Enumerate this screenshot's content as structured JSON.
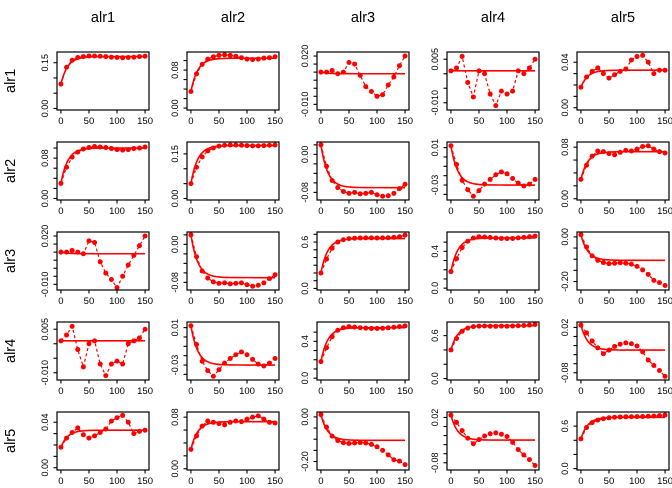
{
  "figure": {
    "background": "#ffffff",
    "accent_color": "#ff0000",
    "axis_color": "#000000",
    "col_headers": [
      "alr1",
      "alr2",
      "alr3",
      "alr4",
      "alr5"
    ],
    "row_headers": [
      "alr1",
      "alr2",
      "alr3",
      "alr4",
      "alr5"
    ]
  },
  "chart_data": {
    "type": "line",
    "title": "",
    "xlabel": "",
    "ylabel": "",
    "grid": false,
    "legend": "none",
    "layout": "5x5 matrix, rows alr1-alr5, columns alr1-alr5, each panel: red points with dashed connector, solid red asymptote/reference line, x axis 0-150",
    "x": [
      0,
      10,
      20,
      30,
      40,
      50,
      60,
      70,
      80,
      90,
      100,
      110,
      120,
      130,
      140,
      150
    ],
    "x_range": [
      -7,
      157
    ],
    "x_ticks": [
      {
        "v": 0,
        "label": "0"
      },
      {
        "v": 50,
        "label": "50"
      },
      {
        "v": 100,
        "label": "100"
      },
      {
        "v": 150,
        "label": "150"
      }
    ],
    "panels": [
      {
        "row": "alr1",
        "col": "alr1",
        "ylim": [
          -0.005,
          0.185
        ],
        "yticks": [
          0,
          0.05,
          0.1,
          0.15
        ],
        "ylabels": [
          [
            0,
            "0.00"
          ],
          [
            0.15,
            "0.15"
          ]
        ],
        "ref": 0.17,
        "y": [
          0.08,
          0.135,
          0.158,
          0.167,
          0.17,
          0.172,
          0.172,
          0.171,
          0.17,
          0.168,
          0.167,
          0.166,
          0.167,
          0.168,
          0.17,
          0.171
        ]
      },
      {
        "row": "alr1",
        "col": "alr2",
        "ylim": [
          -0.004,
          0.118
        ],
        "yticks": [
          0,
          0.02,
          0.04,
          0.06,
          0.08,
          0.1
        ],
        "ylabels": [
          [
            0,
            "0.00"
          ],
          [
            0.08,
            "0.08"
          ]
        ],
        "ref": 0.105,
        "y": [
          0.035,
          0.072,
          0.092,
          0.103,
          0.108,
          0.111,
          0.112,
          0.111,
          0.109,
          0.106,
          0.103,
          0.102,
          0.103,
          0.105,
          0.106,
          0.108
        ]
      },
      {
        "row": "alr1",
        "col": "alr3",
        "ylim": [
          -0.0135,
          0.0225
        ],
        "yticks": [
          -0.01,
          -0.005,
          0,
          0.005,
          0.01,
          0.015,
          0.02
        ],
        "ylabels": [
          [
            -0.01,
            "-0.010"
          ],
          [
            0.02,
            "0.020"
          ]
        ],
        "ref": 0.009,
        "y": [
          0.01,
          0.01,
          0.011,
          0.009,
          0.01,
          0.016,
          0.015,
          0.008,
          0.001,
          -0.002,
          -0.005,
          -0.004,
          0.002,
          0.007,
          0.014,
          0.02
        ]
      },
      {
        "row": "alr1",
        "col": "alr4",
        "ylim": [
          -0.0125,
          0.0075
        ],
        "yticks": [
          -0.01,
          -0.005,
          0,
          0.005
        ],
        "ylabels": [
          [
            -0.01,
            "-0.010"
          ],
          [
            0.005,
            "0.005"
          ]
        ],
        "ref": 0.001,
        "y": [
          0.001,
          0.002,
          0.006,
          -0.003,
          -0.008,
          0.001,
          0.0,
          -0.007,
          -0.011,
          -0.006,
          -0.007,
          -0.006,
          0.001,
          0.0,
          0.002,
          0.005
        ]
      },
      {
        "row": "alr1",
        "col": "alr5",
        "ylim": [
          -0.002,
          0.049
        ],
        "yticks": [
          0,
          0.01,
          0.02,
          0.03,
          0.04
        ],
        "ylabels": [
          [
            0,
            "0.00"
          ],
          [
            0.04,
            "0.04"
          ]
        ],
        "ref": 0.033,
        "y": [
          0.018,
          0.027,
          0.032,
          0.035,
          0.03,
          0.026,
          0.029,
          0.032,
          0.034,
          0.042,
          0.045,
          0.046,
          0.04,
          0.03,
          0.033,
          0.033
        ]
      },
      {
        "row": "alr2",
        "col": "alr1",
        "ylim": [
          -0.003,
          0.112
        ],
        "yticks": [
          0,
          0.02,
          0.04,
          0.06,
          0.08,
          0.1
        ],
        "ylabels": [
          [
            0,
            "0.00"
          ],
          [
            0.08,
            "0.08"
          ]
        ],
        "ref": 0.1,
        "y": [
          0.03,
          0.062,
          0.082,
          0.092,
          0.098,
          0.101,
          0.103,
          0.102,
          0.101,
          0.099,
          0.097,
          0.096,
          0.097,
          0.099,
          0.1,
          0.102
        ]
      },
      {
        "row": "alr2",
        "col": "alr2",
        "ylim": [
          -0.005,
          0.19
        ],
        "yticks": [
          0,
          0.05,
          0.1,
          0.15
        ],
        "ylabels": [
          [
            0,
            "0.00"
          ],
          [
            0.15,
            "0.15"
          ]
        ],
        "ref": 0.178,
        "y": [
          0.05,
          0.105,
          0.14,
          0.16,
          0.17,
          0.176,
          0.179,
          0.18,
          0.18,
          0.179,
          0.178,
          0.177,
          0.177,
          0.178,
          0.179,
          0.18
        ]
      },
      {
        "row": "alr2",
        "col": "alr3",
        "ylim": [
          -0.096,
          0.026
        ],
        "yticks": [
          -0.08,
          -0.06,
          -0.04,
          -0.02,
          0,
          0.02
        ],
        "ylabels": [
          [
            -0.08,
            "-0.08"
          ],
          [
            0,
            "0.00"
          ]
        ],
        "ref": -0.07,
        "y": [
          0.02,
          -0.025,
          -0.055,
          -0.07,
          -0.078,
          -0.082,
          -0.08,
          -0.083,
          -0.082,
          -0.08,
          -0.085,
          -0.088,
          -0.087,
          -0.082,
          -0.072,
          -0.063
        ]
      },
      {
        "row": "alr2",
        "col": "alr4",
        "ylim": [
          -0.046,
          0.016
        ],
        "yticks": [
          -0.04,
          -0.03,
          -0.02,
          -0.01,
          0,
          0.01
        ],
        "ylabels": [
          [
            -0.03,
            "-0.03"
          ],
          [
            0.01,
            "0.01"
          ]
        ],
        "ref": -0.03,
        "y": [
          0.012,
          -0.008,
          -0.025,
          -0.035,
          -0.042,
          -0.036,
          -0.029,
          -0.024,
          -0.019,
          -0.016,
          -0.018,
          -0.023,
          -0.028,
          -0.031,
          -0.029,
          -0.024
        ]
      },
      {
        "row": "alr2",
        "col": "alr5",
        "ylim": [
          -0.002,
          0.088
        ],
        "yticks": [
          0,
          0.02,
          0.04,
          0.06,
          0.08
        ],
        "ylabels": [
          [
            0,
            "0.00"
          ],
          [
            0.08,
            "0.08"
          ]
        ],
        "ref": 0.073,
        "y": [
          0.03,
          0.052,
          0.066,
          0.074,
          0.073,
          0.07,
          0.068,
          0.072,
          0.075,
          0.074,
          0.077,
          0.081,
          0.082,
          0.077,
          0.073,
          0.071
        ]
      },
      {
        "row": "alr3",
        "col": "alr1",
        "ylim": [
          -0.0135,
          0.0225
        ],
        "yticks": [
          -0.01,
          -0.005,
          0,
          0.005,
          0.01,
          0.015,
          0.02
        ],
        "ylabels": [
          [
            -0.01,
            "-0.010"
          ],
          [
            0.02,
            "0.020"
          ]
        ],
        "ref": 0.009,
        "y": [
          0.01,
          0.01,
          0.011,
          0.01,
          0.009,
          0.017,
          0.016,
          0.004,
          -0.003,
          -0.007,
          -0.012,
          -0.005,
          0.002,
          0.008,
          0.014,
          0.02
        ]
      },
      {
        "row": "alr3",
        "col": "alr2",
        "ylim": [
          -0.096,
          0.026
        ],
        "yticks": [
          -0.08,
          -0.06,
          -0.04,
          -0.02,
          0,
          0.02
        ],
        "ylabels": [
          [
            -0.08,
            "-0.08"
          ],
          [
            0,
            "0.00"
          ]
        ],
        "ref": -0.07,
        "y": [
          0.02,
          -0.026,
          -0.056,
          -0.071,
          -0.079,
          -0.082,
          -0.081,
          -0.083,
          -0.082,
          -0.081,
          -0.085,
          -0.088,
          -0.086,
          -0.081,
          -0.072,
          -0.064
        ]
      },
      {
        "row": "alr3",
        "col": "alr3",
        "ylim": [
          -0.02,
          0.73
        ],
        "yticks": [
          0,
          0.1,
          0.2,
          0.3,
          0.4,
          0.5,
          0.6,
          0.7
        ],
        "ylabels": [
          [
            0,
            "0.0"
          ],
          [
            0.6,
            "0.6"
          ]
        ],
        "ref": 0.645,
        "y": [
          0.2,
          0.38,
          0.52,
          0.6,
          0.63,
          0.645,
          0.65,
          0.653,
          0.654,
          0.654,
          0.653,
          0.654,
          0.656,
          0.66,
          0.668,
          0.69
        ]
      },
      {
        "row": "alr3",
        "col": "alr4",
        "ylim": [
          -0.02,
          0.61
        ],
        "yticks": [
          0,
          0.1,
          0.2,
          0.3,
          0.4,
          0.5
        ],
        "ylabels": [
          [
            0,
            "0.0"
          ],
          [
            0.4,
            "0.4"
          ]
        ],
        "ref": 0.545,
        "y": [
          0.18,
          0.32,
          0.44,
          0.51,
          0.545,
          0.558,
          0.556,
          0.55,
          0.545,
          0.54,
          0.538,
          0.54,
          0.546,
          0.552,
          0.558,
          0.565
        ]
      },
      {
        "row": "alr3",
        "col": "alr5",
        "ylim": [
          -0.238,
          0.022
        ],
        "yticks": [
          -0.2,
          -0.15,
          -0.1,
          -0.05,
          0
        ],
        "ylabels": [
          [
            -0.2,
            "-0.20"
          ],
          [
            0,
            "0.00"
          ]
        ],
        "ref": -0.105,
        "y": [
          0.01,
          -0.045,
          -0.085,
          -0.105,
          -0.115,
          -0.12,
          -0.118,
          -0.116,
          -0.118,
          -0.122,
          -0.132,
          -0.148,
          -0.168,
          -0.195,
          -0.205,
          -0.218
        ]
      },
      {
        "row": "alr4",
        "col": "alr1",
        "ylim": [
          -0.0125,
          0.0075
        ],
        "yticks": [
          -0.01,
          -0.005,
          0,
          0.005
        ],
        "ylabels": [
          [
            -0.01,
            "-0.010"
          ],
          [
            0.005,
            "0.005"
          ]
        ],
        "ref": 0.001,
        "y": [
          0.001,
          0.003,
          0.006,
          -0.002,
          -0.008,
          0.0,
          0.001,
          -0.007,
          -0.011,
          -0.007,
          -0.006,
          -0.007,
          0.0,
          0.001,
          0.002,
          0.005
        ]
      },
      {
        "row": "alr4",
        "col": "alr2",
        "ylim": [
          -0.046,
          0.016
        ],
        "yticks": [
          -0.04,
          -0.03,
          -0.02,
          -0.01,
          0,
          0.01
        ],
        "ylabels": [
          [
            -0.03,
            "-0.03"
          ],
          [
            0.01,
            "0.01"
          ]
        ],
        "ref": -0.03,
        "y": [
          0.012,
          -0.008,
          -0.026,
          -0.036,
          -0.042,
          -0.035,
          -0.028,
          -0.023,
          -0.019,
          -0.016,
          -0.019,
          -0.024,
          -0.029,
          -0.031,
          -0.028,
          -0.023
        ]
      },
      {
        "row": "alr4",
        "col": "alr3",
        "ylim": [
          -0.02,
          0.61
        ],
        "yticks": [
          0,
          0.1,
          0.2,
          0.3,
          0.4,
          0.5
        ],
        "ylabels": [
          [
            0,
            "0.0"
          ],
          [
            0.4,
            "0.4"
          ]
        ],
        "ref": 0.548,
        "y": [
          0.18,
          0.33,
          0.45,
          0.52,
          0.548,
          0.56,
          0.554,
          0.548,
          0.543,
          0.54,
          0.539,
          0.542,
          0.547,
          0.553,
          0.56,
          0.568
        ]
      },
      {
        "row": "alr4",
        "col": "alr4",
        "ylim": [
          -0.02,
          0.79
        ],
        "yticks": [
          0,
          0.2,
          0.4,
          0.6
        ],
        "ylabels": [
          [
            0,
            "0.0"
          ],
          [
            0.6,
            "0.6"
          ]
        ],
        "ref": 0.738,
        "y": [
          0.4,
          0.56,
          0.66,
          0.705,
          0.725,
          0.732,
          0.734,
          0.731,
          0.73,
          0.733,
          0.731,
          0.734,
          0.738,
          0.741,
          0.746,
          0.755
        ]
      },
      {
        "row": "alr4",
        "col": "alr5",
        "ylim": [
          -0.096,
          0.032
        ],
        "yticks": [
          -0.08,
          -0.06,
          -0.04,
          -0.02,
          0,
          0.02
        ],
        "ylabels": [
          [
            -0.08,
            "-0.08"
          ],
          [
            0.02,
            "0.02"
          ]
        ],
        "ref": -0.03,
        "y": [
          0.025,
          0.008,
          -0.01,
          -0.025,
          -0.038,
          -0.03,
          -0.022,
          -0.017,
          -0.014,
          -0.016,
          -0.021,
          -0.034,
          -0.052,
          -0.064,
          -0.075,
          -0.088
        ]
      },
      {
        "row": "alr5",
        "col": "alr1",
        "ylim": [
          -0.002,
          0.049
        ],
        "yticks": [
          0,
          0.01,
          0.02,
          0.03,
          0.04
        ],
        "ylabels": [
          [
            0,
            "0.00"
          ],
          [
            0.04,
            "0.04"
          ]
        ],
        "ref": 0.033,
        "y": [
          0.018,
          0.026,
          0.031,
          0.035,
          0.029,
          0.026,
          0.028,
          0.031,
          0.034,
          0.041,
          0.044,
          0.046,
          0.04,
          0.03,
          0.032,
          0.033
        ]
      },
      {
        "row": "alr5",
        "col": "alr2",
        "ylim": [
          -0.002,
          0.088
        ],
        "yticks": [
          0,
          0.02,
          0.04,
          0.06,
          0.08
        ],
        "ylabels": [
          [
            0,
            "0.00"
          ],
          [
            0.08,
            "0.08"
          ]
        ],
        "ref": 0.073,
        "y": [
          0.03,
          0.051,
          0.066,
          0.074,
          0.072,
          0.07,
          0.068,
          0.072,
          0.074,
          0.073,
          0.077,
          0.08,
          0.082,
          0.077,
          0.072,
          0.071
        ]
      },
      {
        "row": "alr5",
        "col": "alr3",
        "ylim": [
          -0.238,
          0.022
        ],
        "yticks": [
          -0.2,
          -0.15,
          -0.1,
          -0.05,
          0
        ],
        "ylabels": [
          [
            -0.2,
            "-0.20"
          ],
          [
            0,
            "0.00"
          ]
        ],
        "ref": -0.105,
        "y": [
          0.01,
          -0.046,
          -0.086,
          -0.106,
          -0.116,
          -0.119,
          -0.117,
          -0.115,
          -0.117,
          -0.123,
          -0.134,
          -0.15,
          -0.17,
          -0.192,
          -0.198,
          -0.214
        ]
      },
      {
        "row": "alr5",
        "col": "alr4",
        "ylim": [
          -0.096,
          0.032
        ],
        "yticks": [
          -0.08,
          -0.06,
          -0.04,
          -0.02,
          0,
          0.02
        ],
        "ylabels": [
          [
            -0.08,
            "-0.08"
          ],
          [
            0.02,
            "0.02"
          ]
        ],
        "ref": -0.03,
        "y": [
          0.025,
          0.009,
          -0.009,
          -0.026,
          -0.038,
          -0.029,
          -0.021,
          -0.016,
          -0.014,
          -0.017,
          -0.022,
          -0.035,
          -0.051,
          -0.063,
          -0.073,
          -0.086
        ]
      },
      {
        "row": "alr5",
        "col": "alr5",
        "ylim": [
          -0.02,
          0.8
        ],
        "yticks": [
          0,
          0.2,
          0.4,
          0.6
        ],
        "ylabels": [
          [
            0,
            "0.0"
          ],
          [
            0.6,
            "0.6"
          ]
        ],
        "ref": 0.725,
        "y": [
          0.42,
          0.58,
          0.65,
          0.685,
          0.705,
          0.718,
          0.726,
          0.73,
          0.732,
          0.733,
          0.735,
          0.737,
          0.74,
          0.744,
          0.748,
          0.758
        ]
      }
    ]
  }
}
